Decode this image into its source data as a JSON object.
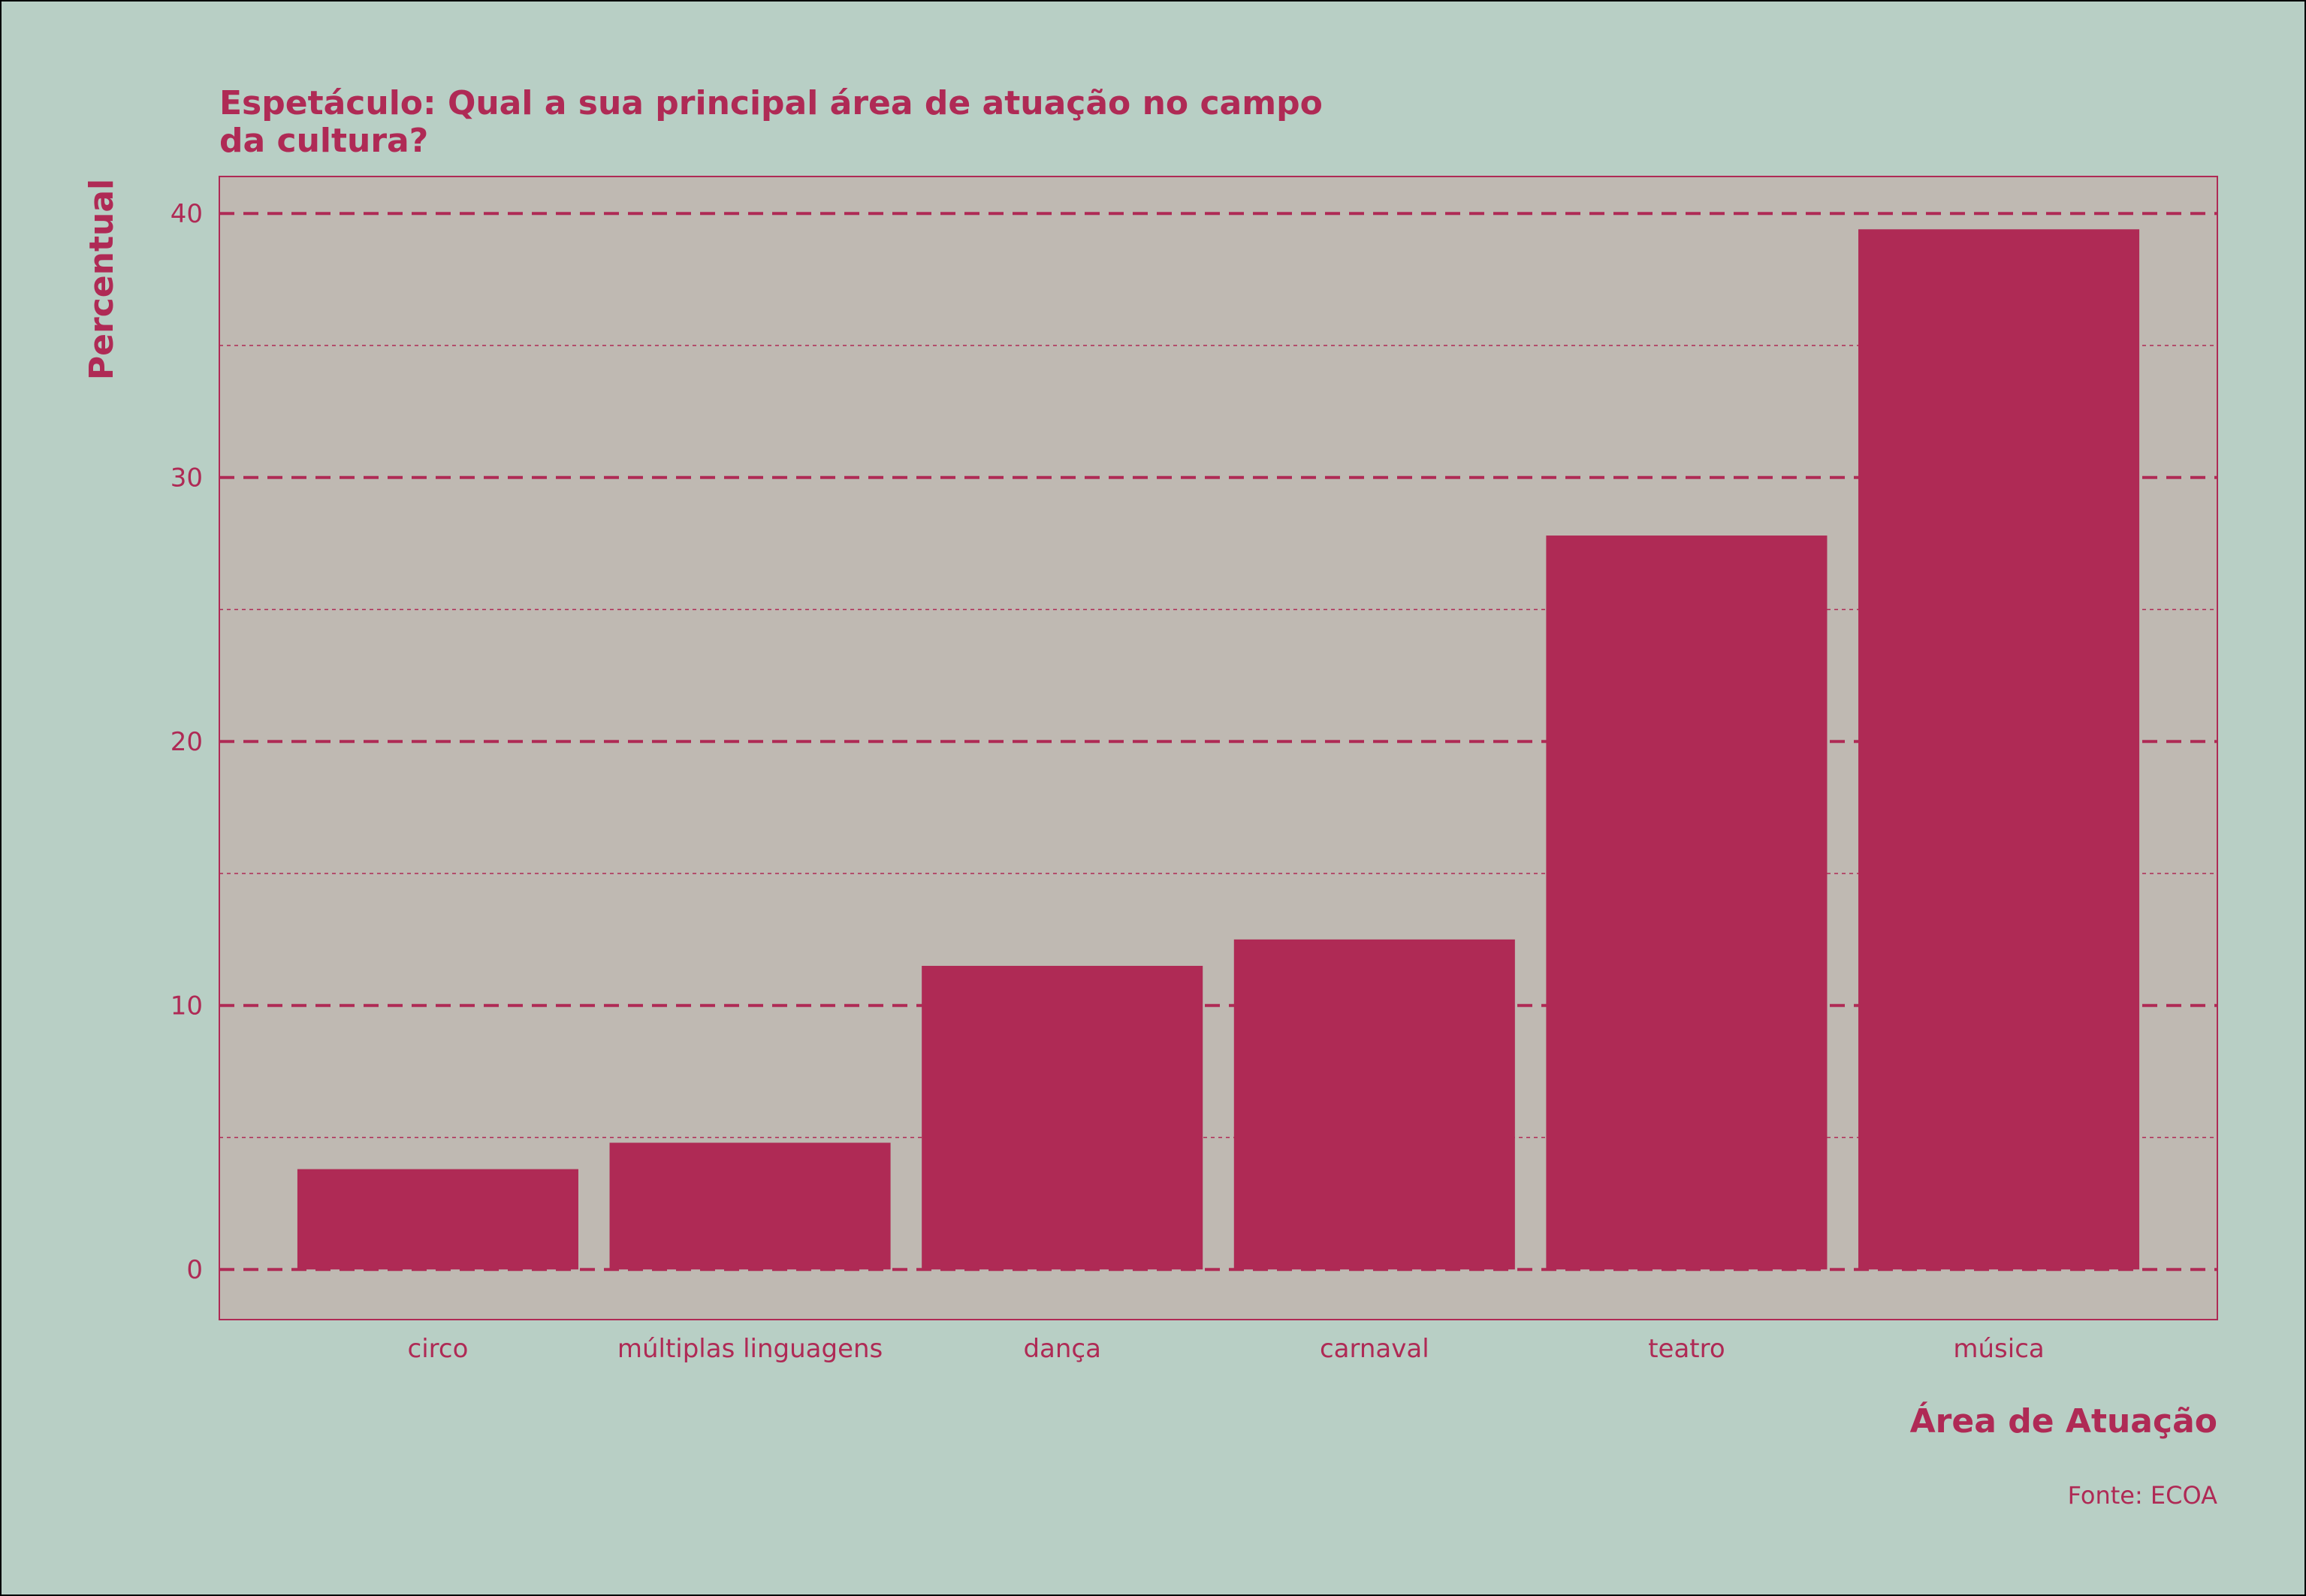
{
  "chart_data": {
    "type": "bar",
    "title_lines": [
      "Espetáculo: Qual a sua principal área de atuação no campo",
      "da cultura?"
    ],
    "xlabel": "Área de Atuação",
    "ylabel": "Percentual",
    "caption": "Fonte: ECOA",
    "categories": [
      "circo",
      "múltiplas linguagens",
      "dança",
      "carnaval",
      "teatro",
      "música"
    ],
    "values": [
      3.8,
      4.8,
      11.5,
      12.5,
      27.8,
      39.4
    ],
    "yticks": [
      0,
      10,
      20,
      30,
      40
    ],
    "ylim": [
      -1.9,
      41.4
    ],
    "grid": "dashed horizontal",
    "legend": "none",
    "colors": {
      "background": "#b8cfc5",
      "panel": "#bfb9b2",
      "accent": "#af2a55"
    }
  }
}
